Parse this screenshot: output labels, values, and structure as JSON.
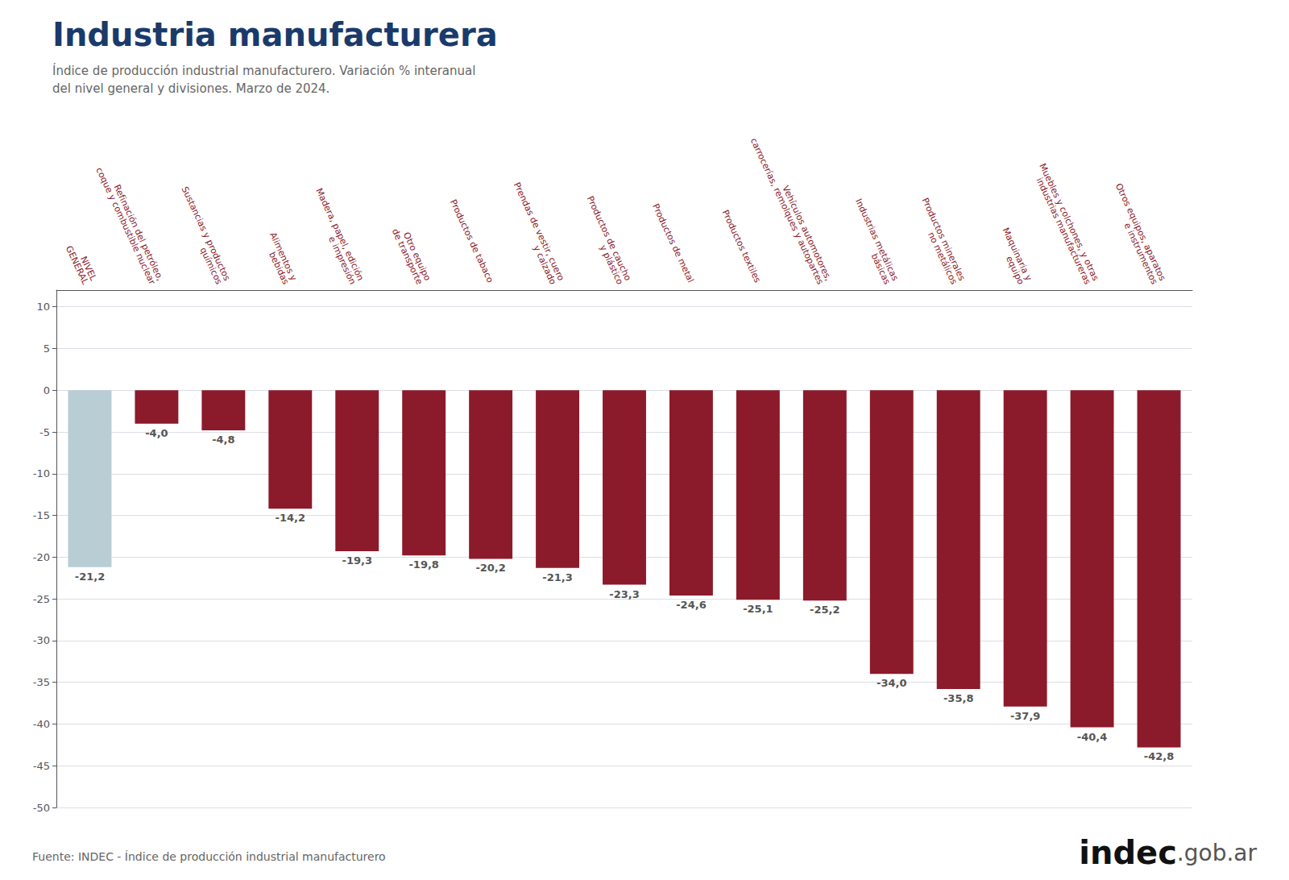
{
  "chart_data": {
    "type": "bar",
    "title": "Industria manufacturera",
    "subtitle": "Índice de producción industrial manufacturero. Variación % interanual\ndel nivel general y divisiones. Marzo de 2024.",
    "categories": [
      "NIVEL\nGENERAL",
      "Refinación del petróleo,\ncoque y combustible nuclear",
      "Sustancias y productos\nquímicos",
      "Alimentos y\nbebidas",
      "Madera, papel, edición\ne impresión",
      "Otro equipo\nde transporte",
      "Productos de tabaco",
      "Prendas de vestir, cuero\ny calzado",
      "Productos de caucho\ny plástico",
      "Productos de metal",
      "Productos textiles",
      "Vehículos automotores,\ncarrocerías, remolques y autopartes",
      "Industrias metálicas\nbásicas",
      "Productos minerales\nno metálicos",
      "Maquinaria y\nequipo",
      "Muebles y colchones, y otras\nindustrias manufactureras",
      "Otros equipos, aparatos\ne instrumentos"
    ],
    "values": [
      -21.2,
      -4.0,
      -4.8,
      -14.2,
      -19.3,
      -19.8,
      -20.2,
      -21.3,
      -23.3,
      -24.6,
      -25.1,
      -25.2,
      -34.0,
      -35.8,
      -37.9,
      -40.4,
      -42.8
    ],
    "value_labels": [
      "-21,2",
      "-4,0",
      "-4,8",
      "-14,2",
      "-19,3",
      "-19,8",
      "-20,2",
      "-21,3",
      "-23,3",
      "-24,6",
      "-25,1",
      "-25,2",
      "-34,0",
      "-35,8",
      "-37,9",
      "-40,4",
      "-42,8"
    ],
    "colors": [
      "#b8cdd4",
      "#8b1a2a",
      "#8b1a2a",
      "#8b1a2a",
      "#8b1a2a",
      "#8b1a2a",
      "#8b1a2a",
      "#8b1a2a",
      "#8b1a2a",
      "#8b1a2a",
      "#8b1a2a",
      "#8b1a2a",
      "#8b1a2a",
      "#8b1a2a",
      "#8b1a2a",
      "#8b1a2a",
      "#8b1a2a"
    ],
    "ylim": [
      -50,
      12
    ],
    "yticks": [
      -50,
      -45,
      -40,
      -35,
      -30,
      -25,
      -20,
      -15,
      -10,
      -5,
      0,
      5,
      10
    ],
    "grid": true,
    "data_labels": true,
    "annotations": [
      "Fuente: INDEC - Índice de producción industrial manufacturero",
      "indec",
      ".gob.ar"
    ]
  }
}
